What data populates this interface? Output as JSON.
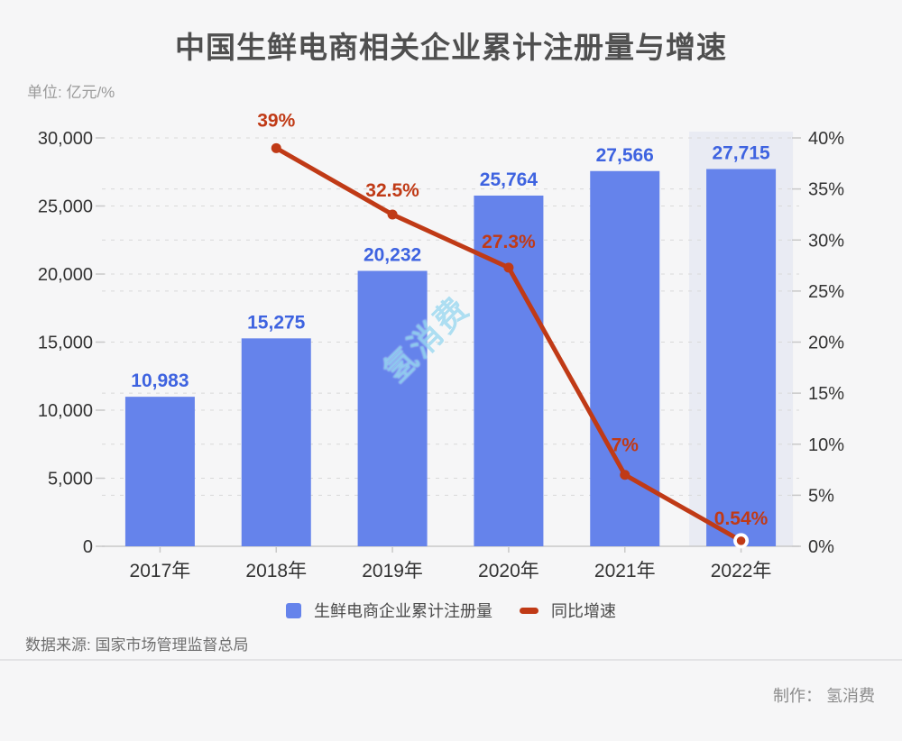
{
  "title": "中国生鲜电商相关企业累计注册量与增速",
  "unit_label": "单位: 亿元/%",
  "chart_data": {
    "type": "bar",
    "title": "中国生鲜电商相关企业累计注册量与增速",
    "categories": [
      "2017年",
      "2018年",
      "2019年",
      "2020年",
      "2021年",
      "2022年"
    ],
    "series": [
      {
        "name": "生鲜电商企业累计注册量",
        "type": "bar",
        "axis": "left",
        "values": [
          10983,
          15275,
          20232,
          25764,
          27566,
          27715
        ],
        "value_labels": [
          "10,983",
          "15,275",
          "20,232",
          "25,764",
          "27,566",
          "27,715"
        ],
        "color": "#6583eb",
        "label_color": "#3e63e0"
      },
      {
        "name": "同比增速",
        "type": "line",
        "axis": "right",
        "values": [
          null,
          39,
          32.5,
          27.3,
          7,
          0.54
        ],
        "value_labels": [
          null,
          "39%",
          "32.5%",
          "27.3%",
          "7%",
          "0.54%"
        ],
        "color": "#c03a16",
        "last_point_ring": true
      }
    ],
    "left_axis": {
      "min": 0,
      "max": 30000,
      "ticks": [
        "0",
        "5,000",
        "10,000",
        "15,000",
        "20,000",
        "25,000",
        "30,000"
      ]
    },
    "right_axis": {
      "min": 0,
      "max": 40,
      "ticks": [
        "0%",
        "5%",
        "10%",
        "15%",
        "20%",
        "25%",
        "30%",
        "35%",
        "40%"
      ]
    },
    "highlighted_category": "2022年",
    "grid": "dashed, both axes",
    "legend_position": "bottom-center"
  },
  "legend": {
    "items": [
      {
        "label": "生鲜电商企业累计注册量",
        "marker": "square",
        "color": "#6583eb"
      },
      {
        "label": "同比增速",
        "marker": "dash",
        "color": "#c03a16"
      }
    ]
  },
  "watermark": "氢消费",
  "footer": {
    "source": "数据来源: 国家市场管理监督总局",
    "credit": "制作： 氢消费"
  },
  "colors": {
    "background": "#f6f6f7",
    "bar": "#6583eb",
    "bar_label": "#3e63e0",
    "line": "#c03a16",
    "highlight_band": "#e9ebf3",
    "grid_line": "#d9d9d9",
    "axis_line": "#c9c9c9",
    "axis_text": "#333333",
    "watermark": "#6ec6ea"
  }
}
